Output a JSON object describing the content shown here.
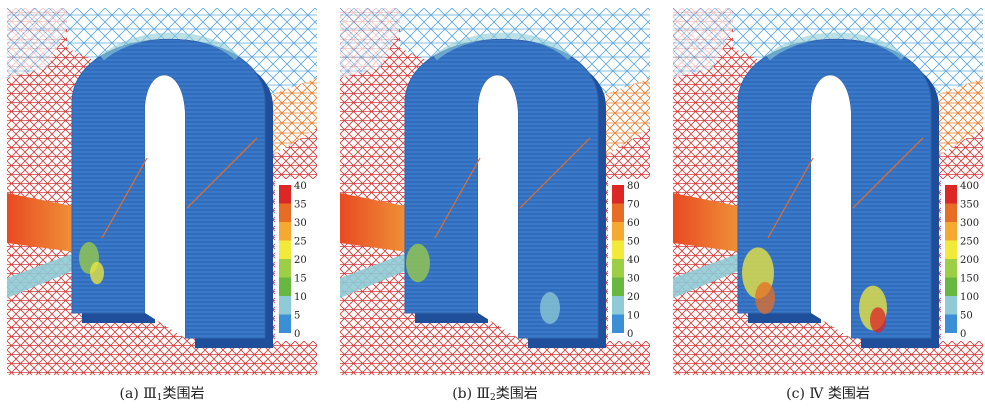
{
  "colors": {
    "legend": [
      "#2b55b8",
      "#3b8fd6",
      "#8ecbd6",
      "#66b83f",
      "#9ccf45",
      "#f1ea3b",
      "#f6a930",
      "#e76d24",
      "#dd2626"
    ],
    "arch": "#3a78c8",
    "mesh_red": "#d23a3a",
    "mesh_blue": "#5aa7e0",
    "mesh_orange": "#ea7b2a"
  },
  "panels": [
    {
      "caption_prefix": "(a) Ⅲ",
      "caption_sub": "1",
      "caption_suffix": "类围岩",
      "legend_ticks": [
        "40",
        "35",
        "30",
        "25",
        "20",
        "15",
        "10",
        "5",
        "0"
      ]
    },
    {
      "caption_prefix": "(b) Ⅲ",
      "caption_sub": "2",
      "caption_suffix": "类围岩",
      "legend_ticks": [
        "80",
        "70",
        "60",
        "50",
        "40",
        "30",
        "20",
        "10",
        "0"
      ]
    },
    {
      "caption_prefix": "(c) Ⅳ",
      "caption_sub": "",
      "caption_suffix": " 类围岩",
      "legend_ticks": [
        "400",
        "350",
        "300",
        "250",
        "200",
        "150",
        "100",
        "50",
        "0"
      ]
    }
  ]
}
